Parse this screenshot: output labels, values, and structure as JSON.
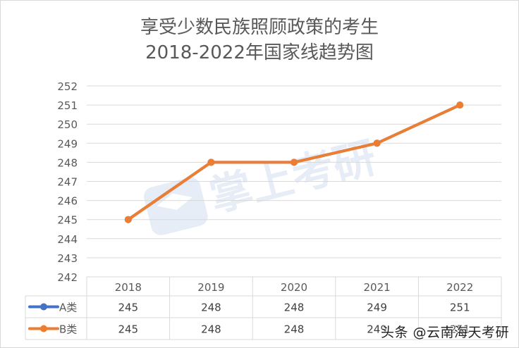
{
  "title_line1": "享受少数民族照顾政策的考生",
  "title_line2": "2018-2022年国家线趋势图",
  "watermark": "头条 @云南海天考研",
  "chart_data": {
    "type": "line",
    "title": "享受少数民族照顾政策的考生 2018-2022年国家线趋势图",
    "categories": [
      "2018",
      "2019",
      "2020",
      "2021",
      "2022"
    ],
    "series": [
      {
        "name": "A类",
        "values": [
          245,
          248,
          248,
          249,
          251
        ],
        "color": "#4472c4"
      },
      {
        "name": "B类",
        "values": [
          245,
          248,
          248,
          249,
          251
        ],
        "color": "#ed7d31"
      }
    ],
    "ylim": [
      242,
      252
    ],
    "yticks": [
      242,
      243,
      244,
      245,
      246,
      247,
      248,
      249,
      250,
      251,
      252
    ],
    "grid": true,
    "legend": "data-table",
    "data_table": true
  }
}
